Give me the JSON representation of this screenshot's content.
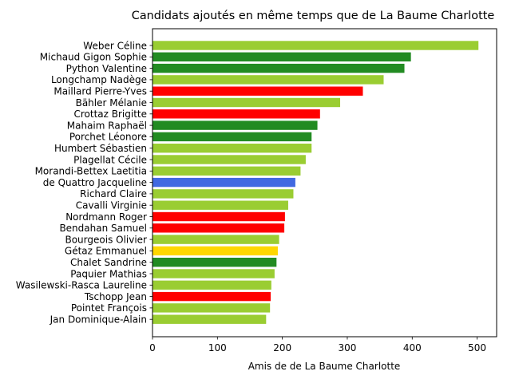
{
  "chart_data": {
    "type": "bar",
    "orientation": "horizontal",
    "title": "Candidats ajoutés en même temps que de La Baume Charlotte",
    "xlabel": "Amis de de La Baume Charlotte",
    "ylabel": "",
    "xlim": [
      0,
      530
    ],
    "xticks": [
      0,
      100,
      200,
      300,
      400,
      500
    ],
    "grid": false,
    "categories": [
      "Weber Céline",
      "Michaud Gigon Sophie",
      "Python Valentine",
      "Longchamp Nadège",
      "Maillard Pierre-Yves",
      "Bähler Mélanie",
      "Crottaz Brigitte",
      "Mahaim Raphaël",
      "Porchet Léonore",
      "Humbert Sébastien",
      "Plagellat Cécile",
      "Morandi-Bettex Laetitia",
      "de Quattro Jacqueline",
      "Richard Claire",
      "Cavalli Virginie",
      "Nordmann Roger",
      "Bendahan Samuel",
      "Bourgeois Olivier",
      "Gétaz Emmanuel",
      "Chalet Sandrine",
      "Paquier Mathias",
      "Wasilewski-Rasca Laureline",
      "Tschopp Jean",
      "Pointet François",
      "Jan Dominique-Alain"
    ],
    "values": [
      502,
      398,
      388,
      356,
      324,
      289,
      258,
      254,
      245,
      245,
      236,
      228,
      220,
      217,
      209,
      204,
      203,
      195,
      193,
      191,
      188,
      183,
      182,
      181,
      175
    ],
    "colors": [
      "#9acd32",
      "#228b22",
      "#228b22",
      "#9acd32",
      "#ff0000",
      "#9acd32",
      "#ff0000",
      "#228b22",
      "#228b22",
      "#9acd32",
      "#9acd32",
      "#9acd32",
      "#4169e1",
      "#9acd32",
      "#9acd32",
      "#ff0000",
      "#ff0000",
      "#9acd32",
      "#ffd700",
      "#228b22",
      "#9acd32",
      "#9acd32",
      "#ff0000",
      "#9acd32",
      "#9acd32"
    ]
  }
}
